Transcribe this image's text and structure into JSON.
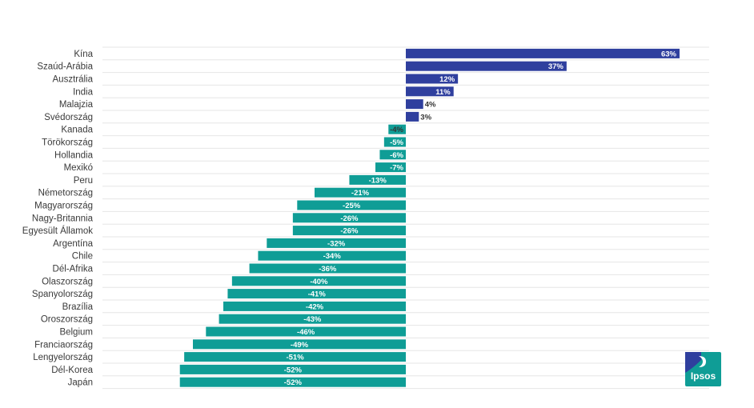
{
  "chart_data": {
    "type": "bar",
    "orientation": "horizontal",
    "title": "",
    "xlabel": "",
    "ylabel": "",
    "xlim": [
      -75,
      75
    ],
    "grid": true,
    "positive_color": "#2f3f9e",
    "negative_color": "#0f9d96",
    "categories": [
      "Kína",
      "Szaúd-Arábia",
      "Ausztrália",
      "India",
      "Malajzia",
      "Svédország",
      "Kanada",
      "Törökország",
      "Hollandia",
      "Mexikó",
      "Peru",
      "Németország",
      "Magyarország",
      "Nagy-Britannia",
      "Egyesült Államok",
      "Argentína",
      "Chile",
      "Dél-Afrika",
      "Olaszország",
      "Spanyolország",
      "Brazília",
      "Oroszország",
      "Belgium",
      "Franciaország",
      "Lengyelország",
      "Dél-Korea",
      "Japán"
    ],
    "values": [
      63,
      37,
      12,
      11,
      4,
      3,
      -4,
      -5,
      -6,
      -7,
      -13,
      -21,
      -25,
      -26,
      -26,
      -32,
      -34,
      -36,
      -40,
      -41,
      -42,
      -43,
      -46,
      -49,
      -51,
      -52,
      -52
    ],
    "value_labels": [
      "63%",
      "37%",
      "12%",
      "11%",
      "4%",
      "3%",
      "-4%",
      "-5%",
      "-6%",
      "-7%",
      "-13%",
      "-21%",
      "-25%",
      "-26%",
      "-26%",
      "-32%",
      "-34%",
      "-36%",
      "-40%",
      "-41%",
      "-42%",
      "-43%",
      "-46%",
      "-49%",
      "-51%",
      "-52%",
      "-52%"
    ]
  },
  "logo": {
    "text": "Ipsos",
    "color": "#0f9d96",
    "accent_color": "#2f3f9e"
  }
}
